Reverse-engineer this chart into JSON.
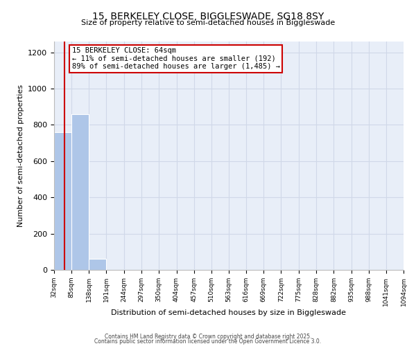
{
  "title": "15, BERKELEY CLOSE, BIGGLESWADE, SG18 8SY",
  "subtitle": "Size of property relative to semi-detached houses in Biggleswade",
  "xlabel": "Distribution of semi-detached houses by size in Biggleswade",
  "ylabel": "Number of semi-detached properties",
  "bin_edges": [
    32,
    85,
    138,
    191,
    244,
    297,
    350,
    404,
    457,
    510,
    563,
    616,
    669,
    722,
    775,
    828,
    882,
    935,
    988,
    1041,
    1094
  ],
  "bar_heights": [
    760,
    860,
    60,
    0,
    0,
    0,
    0,
    0,
    0,
    0,
    0,
    0,
    0,
    0,
    0,
    0,
    0,
    0,
    0,
    0
  ],
  "bar_color": "#aec6e8",
  "grid_color": "#d0d8e8",
  "bg_color": "#e8eef8",
  "property_size": 64,
  "property_line_color": "#cc0000",
  "annotation_text": "15 BERKELEY CLOSE: 64sqm\n← 11% of semi-detached houses are smaller (192)\n89% of semi-detached houses are larger (1,485) →",
  "annotation_box_color": "#cc0000",
  "ylim": [
    0,
    1260
  ],
  "yticks": [
    0,
    200,
    400,
    600,
    800,
    1000,
    1200
  ],
  "footer1": "Contains HM Land Registry data © Crown copyright and database right 2025.",
  "footer2": "Contains public sector information licensed under the Open Government Licence 3.0."
}
